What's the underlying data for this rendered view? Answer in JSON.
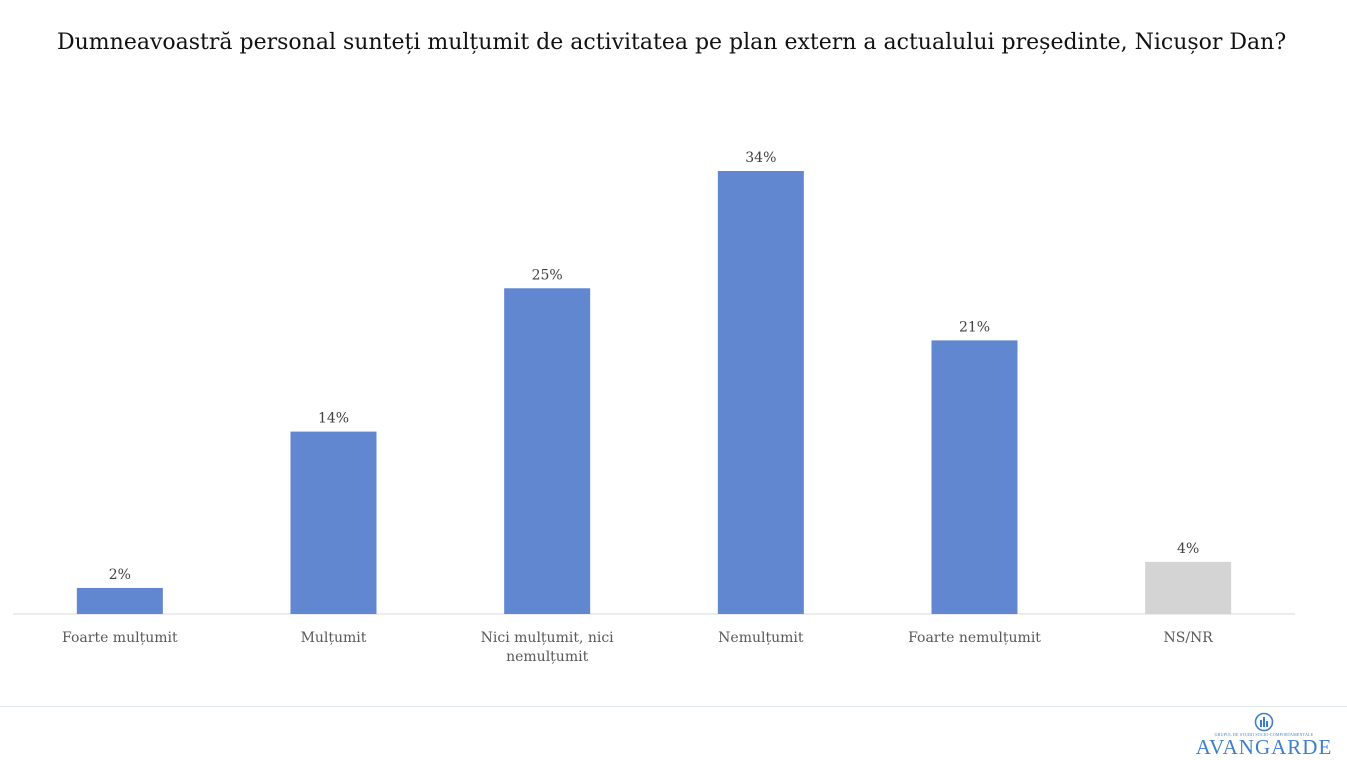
{
  "chart_data": {
    "type": "bar",
    "title": "Dumneavoastră personal sunteți mulțumit de activitatea pe plan extern a actualului președinte, Nicușor Dan?",
    "categories": [
      "Foarte mulțumit",
      "Mulțumit",
      "Nici mulțumit, nici nemulțumit",
      "Nemulțumit",
      "Foarte nemulțumit",
      "NS/NR"
    ],
    "category_lines": [
      [
        "Foarte mulțumit"
      ],
      [
        "Mulțumit"
      ],
      [
        "Nici mulțumit, nici",
        "nemulțumit"
      ],
      [
        "Nemulțumit"
      ],
      [
        "Foarte nemulțumit"
      ],
      [
        "NS/NR"
      ]
    ],
    "values": [
      2,
      14,
      25,
      34,
      21,
      4
    ],
    "data_labels": [
      "2%",
      "14%",
      "25%",
      "34%",
      "21%",
      "4%"
    ],
    "bar_colors": [
      "#6087cf",
      "#6087cf",
      "#6087cf",
      "#6087cf",
      "#6087cf",
      "#d4d4d4"
    ],
    "ylim": [
      0,
      34
    ],
    "xlabel": "",
    "ylabel": "",
    "grid": false,
    "legend": false
  },
  "logo": {
    "name": "AVANGARDE",
    "subtitle": "GRUPUL DE STUDII SOCIO-COMPORTAMENTALE",
    "color": "#3f7fc8"
  }
}
